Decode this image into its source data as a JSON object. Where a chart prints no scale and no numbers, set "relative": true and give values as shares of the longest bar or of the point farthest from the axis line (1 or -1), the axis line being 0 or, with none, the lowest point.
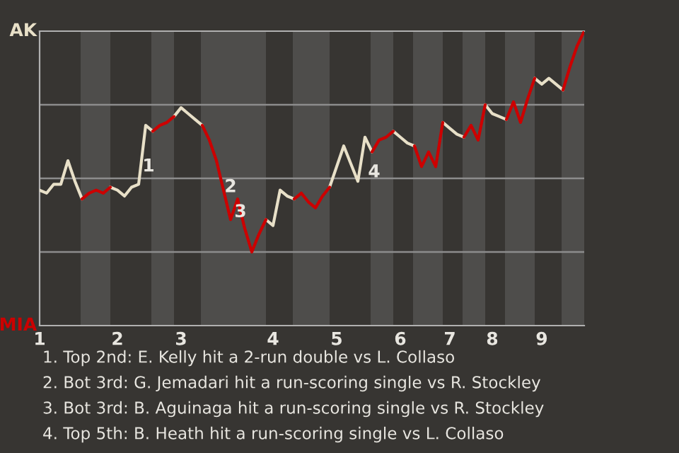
{
  "chart_data": {
    "type": "line",
    "relative": true,
    "marker": "none",
    "line_style": "solid",
    "categories": [
      "1",
      null,
      null,
      null,
      null,
      null,
      null,
      null,
      null,
      null,
      null,
      "2",
      null,
      null,
      null,
      null,
      null,
      null,
      null,
      null,
      "3",
      null,
      null,
      null,
      null,
      null,
      null,
      null,
      null,
      null,
      null,
      null,
      null,
      "4",
      null,
      null,
      null,
      null,
      null,
      null,
      null,
      null,
      "5",
      null,
      null,
      null,
      null,
      null,
      null,
      null,
      null,
      "6",
      null,
      null,
      null,
      null,
      null,
      null,
      "7",
      null,
      null,
      null,
      null,
      null,
      "8",
      null,
      null,
      null,
      null,
      null,
      null,
      "9",
      null,
      null,
      null,
      null,
      null,
      null
    ],
    "ref_lines": [
      {
        "axis": "y",
        "value": 0.25,
        "color": "#8c8c8c"
      },
      {
        "axis": "y",
        "value": 0.5,
        "color": "#8c8c8c"
      },
      {
        "axis": "y",
        "value": 0.75,
        "color": "#8c8c8c"
      }
    ],
    "series": [
      {
        "color": "#e8e0c8",
        "values": [
          0.46,
          0.45,
          0.48,
          0.48,
          0.56,
          0.49,
          0.43,
          null,
          null,
          null,
          0.47,
          0.46,
          0.44,
          0.47,
          0.48,
          0.68,
          0.66,
          null,
          null,
          0.71,
          0.74,
          0.72,
          0.7,
          0.68,
          null,
          null,
          null,
          null,
          null,
          null,
          null,
          null,
          0.36,
          0.34,
          0.46,
          0.44,
          0.43,
          null,
          null,
          null,
          null,
          0.47,
          0.54,
          0.61,
          0.55,
          0.49,
          0.64,
          0.59,
          null,
          null,
          0.66,
          0.64,
          0.62,
          0.61,
          null,
          null,
          null,
          0.69,
          0.67,
          0.65,
          0.64,
          null,
          null,
          0.75,
          0.72,
          0.71,
          0.7,
          null,
          null,
          null,
          0.84,
          0.82,
          0.84,
          0.82,
          0.8,
          null,
          null,
          null
        ]
      },
      {
        "color": "#cc0000",
        "values": [
          null,
          null,
          null,
          null,
          null,
          null,
          0.43,
          0.45,
          0.46,
          0.45,
          0.47,
          null,
          null,
          null,
          null,
          null,
          0.66,
          0.68,
          0.69,
          0.71,
          null,
          null,
          null,
          0.68,
          0.63,
          0.56,
          0.46,
          0.36,
          0.43,
          0.33,
          0.25,
          0.31,
          0.36,
          null,
          null,
          null,
          0.43,
          0.45,
          0.42,
          0.4,
          0.44,
          0.47,
          null,
          null,
          null,
          null,
          null,
          0.59,
          0.63,
          0.64,
          0.66,
          null,
          null,
          0.61,
          0.54,
          0.59,
          0.54,
          0.69,
          null,
          null,
          0.64,
          0.68,
          0.63,
          0.75,
          null,
          null,
          0.7,
          0.76,
          0.69,
          0.77,
          0.84,
          null,
          null,
          null,
          0.8,
          0.88,
          0.95,
          1
        ]
      }
    ],
    "annotations": [
      "AK",
      "MIA",
      "1",
      "2",
      "3",
      "4",
      "1. Top 2nd: E. Kelly hit a 2-run double vs L. Collaso",
      "2. Bot 3rd: G. Jemadari hit a run-scoring single vs R. Stockley",
      "3. Bot 3rd: B. Aguinaga hit a run-scoring single vs R. Stockley",
      "4. Top 5th: B. Heath hit a run-scoring single vs L. Collaso"
    ]
  }
}
